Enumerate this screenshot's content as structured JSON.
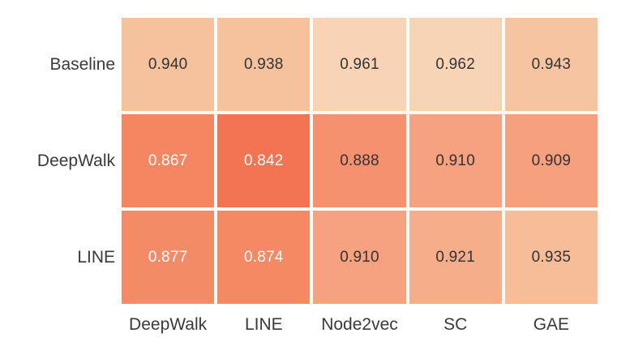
{
  "chart_data": {
    "type": "heatmap",
    "title": "",
    "row_labels": [
      "Baseline",
      "DeepWalk",
      "LINE"
    ],
    "col_labels": [
      "DeepWalk",
      "LINE",
      "Node2vec",
      "SC",
      "GAE"
    ],
    "values": [
      [
        0.94,
        0.938,
        0.961,
        0.962,
        0.943
      ],
      [
        0.867,
        0.842,
        0.888,
        0.91,
        0.909
      ],
      [
        0.877,
        0.874,
        0.91,
        0.921,
        0.935
      ]
    ],
    "cell_text": [
      [
        "0.940",
        "0.938",
        "0.961",
        "0.962",
        "0.943"
      ],
      [
        "0.867",
        "0.842",
        "0.888",
        "0.910",
        "0.909"
      ],
      [
        "0.877",
        "0.874",
        "0.910",
        "0.921",
        "0.935"
      ]
    ],
    "cell_colors": [
      [
        "#f6c29e",
        "#f6c19d",
        "#f8d3b6",
        "#f8d4b7",
        "#f6c4a1"
      ],
      [
        "#f58662",
        "#f37453",
        "#f5916f",
        "#f6a17f",
        "#f6a07e"
      ],
      [
        "#f48b67",
        "#f48964",
        "#f6a17f",
        "#f6ad89",
        "#f7bd99"
      ]
    ],
    "cell_text_colors": [
      [
        "#333333",
        "#333333",
        "#333333",
        "#333333",
        "#333333"
      ],
      [
        "#ffffff",
        "#ffffff",
        "#333333",
        "#333333",
        "#333333"
      ],
      [
        "#ffffff",
        "#ffffff",
        "#333333",
        "#333333",
        "#333333"
      ]
    ],
    "value_range": [
      0.842,
      0.962
    ],
    "colormap_hint": "orange: darker = lower value, lighter = higher value",
    "grid_gap_color": "#ffffff",
    "legend": "none"
  }
}
